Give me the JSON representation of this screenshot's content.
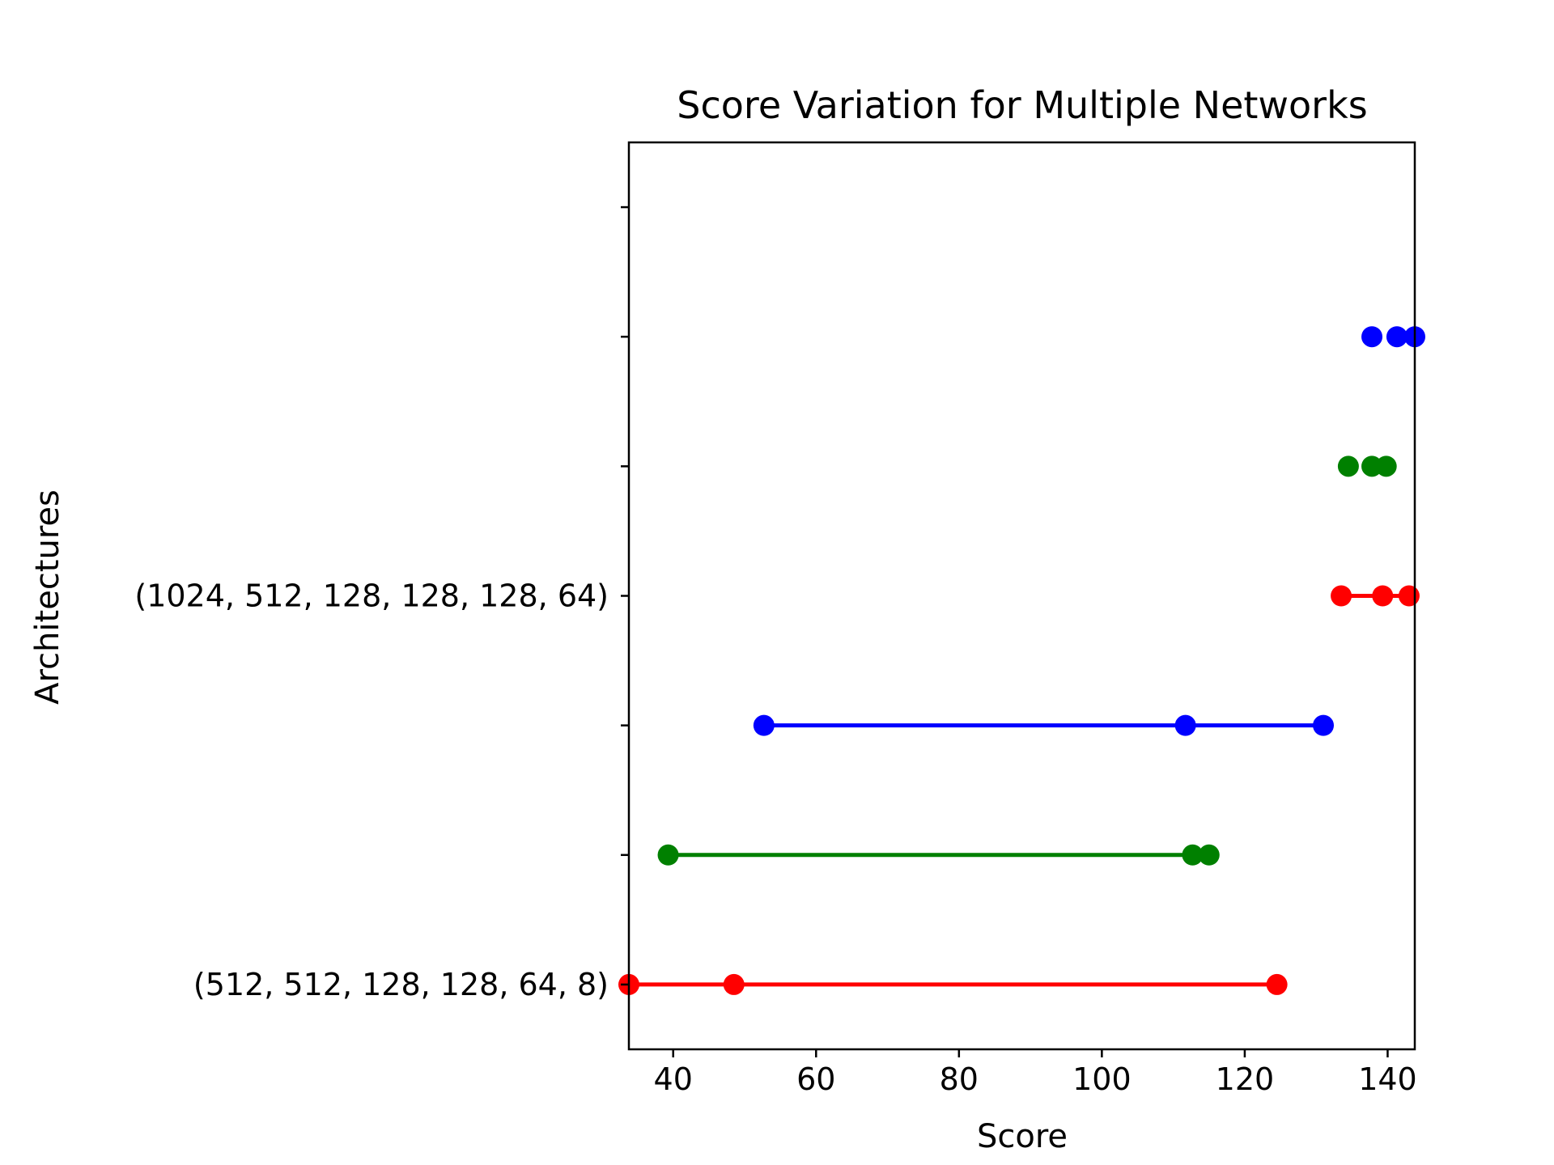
{
  "chart_data": {
    "type": "scatter",
    "title": "Score Variation for Multiple Networks",
    "xlabel": "Score",
    "ylabel": "Architectures",
    "xlim": [
      33.8,
      143.8
    ],
    "xticks": [
      40,
      60,
      80,
      100,
      120,
      140
    ],
    "xtick_labels": [
      "40",
      "60",
      "80",
      "100",
      "120",
      "140"
    ],
    "ylim": [
      -0.5,
      6.5
    ],
    "yticks": [
      0,
      1,
      2,
      3,
      4,
      5,
      6
    ],
    "ytick_labels": [
      "(512, 512, 128, 128, 64, 8)",
      "",
      "",
      "(1024, 512, 128, 128, 128, 64)",
      "",
      "",
      ""
    ],
    "grid": false,
    "legend": "none",
    "series": [
      {
        "y": 0,
        "color": "#ff0000",
        "points": [
          33.8,
          48.5,
          124.5
        ],
        "connected": true
      },
      {
        "y": 1,
        "color": "#008000",
        "points": [
          39.3,
          112.7,
          115.0
        ],
        "connected": true
      },
      {
        "y": 2,
        "color": "#0000ff",
        "points": [
          52.7,
          111.7,
          131.0
        ],
        "connected": true
      },
      {
        "y": 3,
        "color": "#ff0000",
        "points": [
          133.5,
          139.3,
          143.0
        ],
        "connected": true
      },
      {
        "y": 4,
        "color": "#008000",
        "points": [
          134.5,
          137.8,
          139.8
        ],
        "connected": false
      },
      {
        "y": 5,
        "color": "#0000ff",
        "points": [
          137.8,
          141.3,
          143.8
        ],
        "connected": false
      }
    ]
  }
}
